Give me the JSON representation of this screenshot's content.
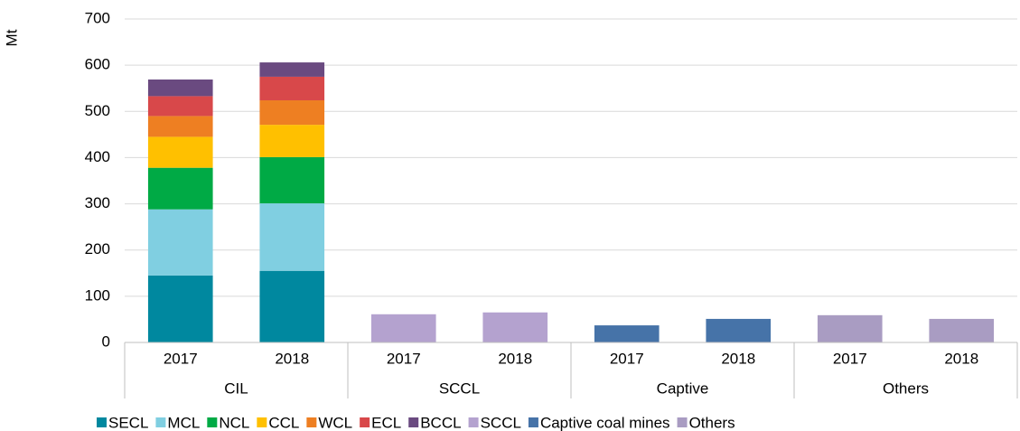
{
  "chart_data": {
    "type": "stacked_bar",
    "y_label": "Mt",
    "categories": [
      "2017",
      "2018",
      "2017",
      "2018",
      "2017",
      "2018",
      "2017",
      "2018"
    ],
    "groups": [
      "CIL",
      "SCCL",
      "Captive",
      "Others"
    ],
    "series": [
      {
        "name": "SECL",
        "color": "#00889f",
        "values": [
          145,
          155,
          null,
          null,
          null,
          null,
          null,
          null
        ]
      },
      {
        "name": "MCL",
        "color": "#80cfe1",
        "values": [
          143,
          146,
          null,
          null,
          null,
          null,
          null,
          null
        ]
      },
      {
        "name": "NCL",
        "color": "#00aa45",
        "values": [
          90,
          100,
          null,
          null,
          null,
          null,
          null,
          null
        ]
      },
      {
        "name": "CCL",
        "color": "#ffc000",
        "values": [
          67,
          70,
          null,
          null,
          null,
          null,
          null,
          null
        ]
      },
      {
        "name": "WCL",
        "color": "#ee7f22",
        "values": [
          45,
          53,
          null,
          null,
          null,
          null,
          null,
          null
        ]
      },
      {
        "name": "ECL",
        "color": "#d8484a",
        "values": [
          43,
          51,
          null,
          null,
          null,
          null,
          null,
          null
        ]
      },
      {
        "name": "BCCL",
        "color": "#6a4a80",
        "values": [
          36,
          31,
          null,
          null,
          null,
          null,
          null,
          null
        ]
      },
      {
        "name": "SCCL",
        "color": "#b4a2cf",
        "values": [
          null,
          null,
          61,
          65,
          null,
          null,
          null,
          null
        ]
      },
      {
        "name": "Captive coal mines",
        "color": "#4673a8",
        "values": [
          null,
          null,
          null,
          null,
          37,
          51,
          null,
          null
        ]
      },
      {
        "name": "Others",
        "color": "#a99cc2",
        "values": [
          null,
          null,
          null,
          null,
          null,
          null,
          59,
          51
        ]
      }
    ],
    "ylim": [
      0,
      700
    ],
    "yticks": [
      0,
      100,
      200,
      300,
      400,
      500,
      600,
      700
    ],
    "grid": true
  }
}
